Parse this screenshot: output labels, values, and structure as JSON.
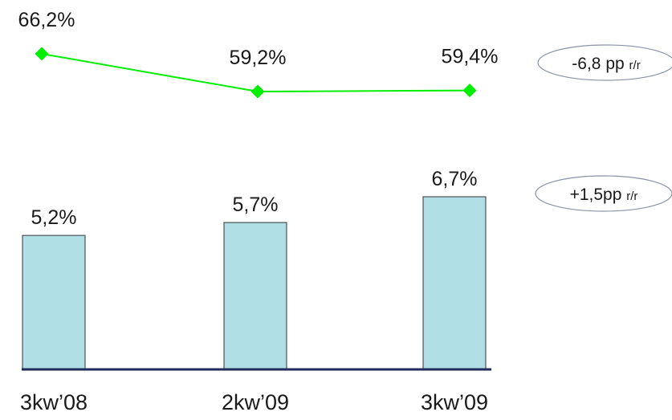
{
  "chart_data": [
    {
      "type": "line",
      "values": [
        66.2,
        59.2,
        59.4
      ],
      "value_labels": [
        "66,2%",
        "59,2%",
        "59,4%"
      ],
      "color": "#00ee00",
      "annotation": [
        "-6,8 pp",
        "r/r"
      ]
    },
    {
      "type": "bar",
      "categories": [
        "3kw’08",
        "2kw’09",
        "3kw’09"
      ],
      "values": [
        5.2,
        5.7,
        6.7
      ],
      "value_labels": [
        "5,2%",
        "5,7%",
        "6,7%"
      ],
      "color": "#b0dfe5",
      "annotation": [
        "+1,5pp",
        "r/r"
      ]
    }
  ]
}
